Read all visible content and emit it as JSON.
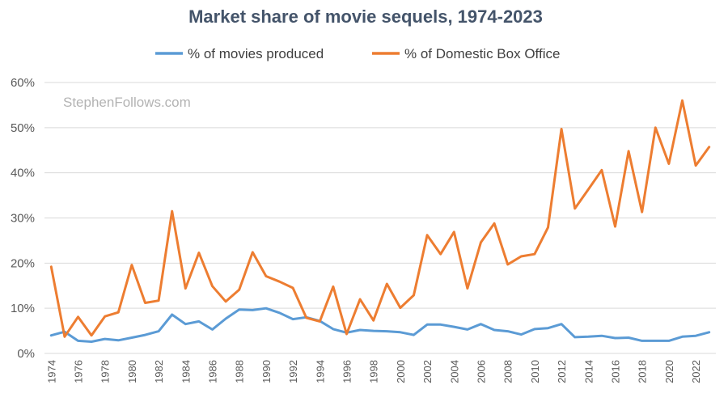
{
  "chart_data": {
    "type": "line",
    "title": "Market share of movie sequels, 1974-2023",
    "watermark": "StephenFollows.com",
    "x": [
      1974,
      1975,
      1976,
      1977,
      1978,
      1979,
      1980,
      1981,
      1982,
      1983,
      1984,
      1985,
      1986,
      1987,
      1988,
      1989,
      1990,
      1991,
      1992,
      1993,
      1994,
      1995,
      1996,
      1997,
      1998,
      1999,
      2000,
      2001,
      2002,
      2003,
      2004,
      2005,
      2006,
      2007,
      2008,
      2009,
      2010,
      2011,
      2012,
      2013,
      2014,
      2015,
      2016,
      2017,
      2018,
      2019,
      2020,
      2021,
      2022,
      2023
    ],
    "x_tick_labels": [
      "1974",
      "1976",
      "1978",
      "1980",
      "1982",
      "1984",
      "1986",
      "1988",
      "1990",
      "1992",
      "1994",
      "1996",
      "1998",
      "2000",
      "2002",
      "2004",
      "2006",
      "2008",
      "2010",
      "2012",
      "2014",
      "2016",
      "2018",
      "2020",
      "2022"
    ],
    "y_tick_labels": [
      "0%",
      "10%",
      "20%",
      "30%",
      "40%",
      "50%",
      "60%"
    ],
    "ylim": [
      0,
      60
    ],
    "grid": true,
    "legend_position": "top",
    "series": [
      {
        "name": "% of movies produced",
        "color": "#5b9bd5",
        "values": [
          4.0,
          4.8,
          2.8,
          2.6,
          3.2,
          2.9,
          3.5,
          4.1,
          4.9,
          8.6,
          6.5,
          7.1,
          5.3,
          7.7,
          9.7,
          9.6,
          10.0,
          9.0,
          7.6,
          8.0,
          7.2,
          5.4,
          4.6,
          5.2,
          5.0,
          4.9,
          4.7,
          4.1,
          6.4,
          6.4,
          5.9,
          5.3,
          6.5,
          5.2,
          4.9,
          4.2,
          5.4,
          5.6,
          6.5,
          3.6,
          3.7,
          3.9,
          3.4,
          3.5,
          2.8,
          2.8,
          2.8,
          3.7,
          3.9,
          4.7
        ]
      },
      {
        "name": "% of Domestic Box Office",
        "color": "#ed7d31",
        "values": [
          19.2,
          3.7,
          8.1,
          4.0,
          8.2,
          9.1,
          19.6,
          11.2,
          11.7,
          31.5,
          14.4,
          22.3,
          14.9,
          11.5,
          14.1,
          22.4,
          17.1,
          15.9,
          14.5,
          7.9,
          7.1,
          14.8,
          4.3,
          12.0,
          7.3,
          15.4,
          10.1,
          12.9,
          26.2,
          22.0,
          26.9,
          14.4,
          24.6,
          28.8,
          19.7,
          21.5,
          22.0,
          27.9,
          49.7,
          32.1,
          36.3,
          40.6,
          28.1,
          44.8,
          31.3,
          50.0,
          42.0,
          56.0,
          41.6,
          45.7
        ]
      }
    ]
  }
}
